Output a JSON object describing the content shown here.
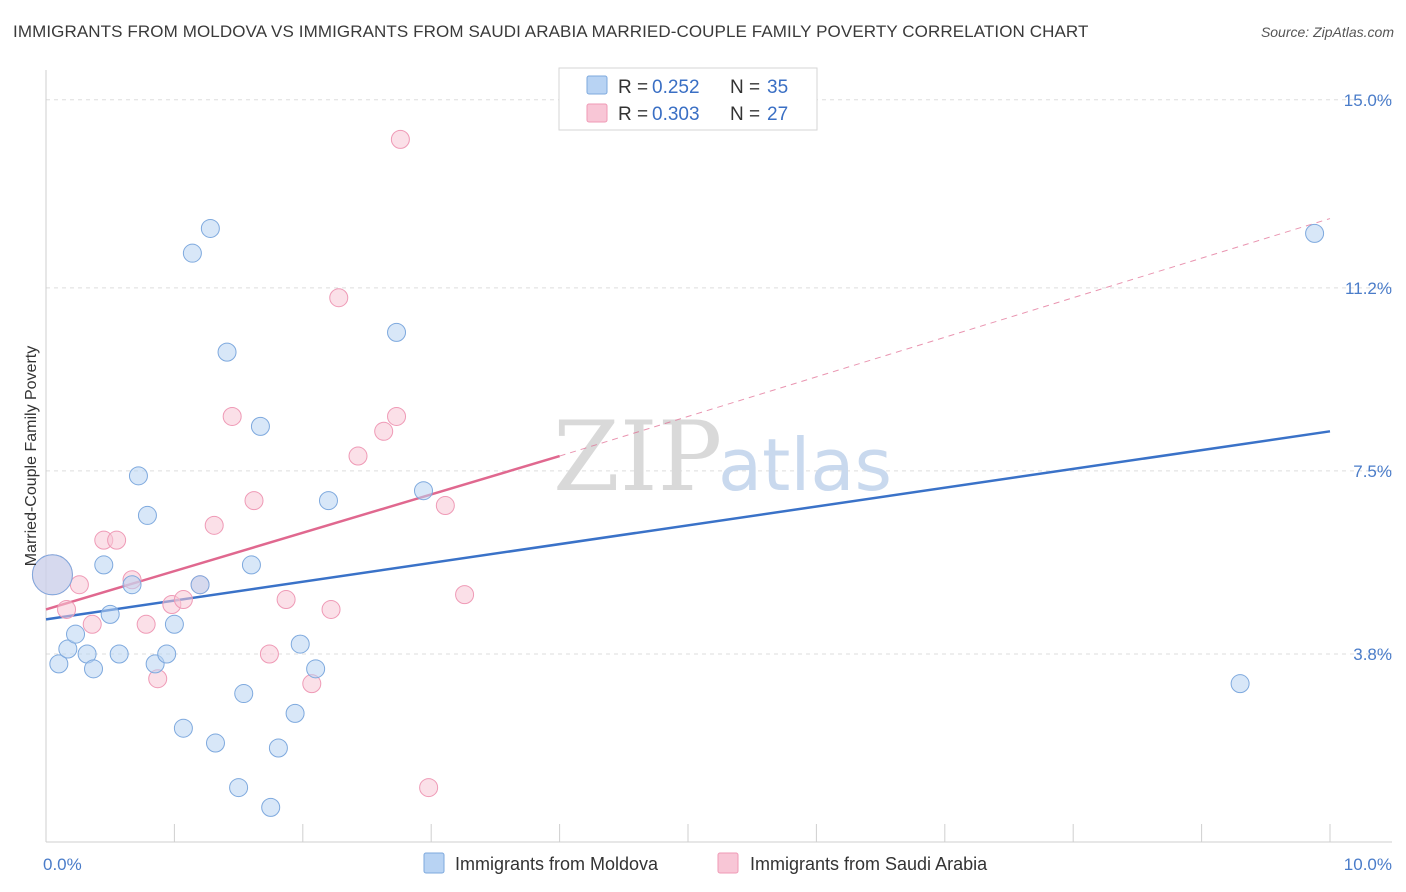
{
  "header": {
    "title": "IMMIGRANTS FROM MOLDOVA VS IMMIGRANTS FROM SAUDI ARABIA MARRIED-COUPLE FAMILY POVERTY CORRELATION CHART",
    "source": "Source: ZipAtlas.com"
  },
  "watermark": {
    "part1": "ZIP",
    "part2": "atlas"
  },
  "colors": {
    "moldova_fill": "#b8d3f3",
    "moldova_stroke": "#7ea9de",
    "moldova_line": "#3a72c8",
    "saudi_fill": "#f8c6d6",
    "saudi_stroke": "#ef9ab6",
    "saudi_line": "#e0688f",
    "grid": "#dddddd",
    "tick_text": "#4a7cc9"
  },
  "legend": {
    "rows": [
      {
        "r_label": "R = ",
        "r_value": "0.252",
        "n_label": "N = ",
        "n_value": "35"
      },
      {
        "r_label": "R = ",
        "r_value": "0.303",
        "n_label": "N = ",
        "n_value": "27"
      }
    ]
  },
  "chart_data": {
    "type": "scatter",
    "title": "IMMIGRANTS FROM MOLDOVA VS IMMIGRANTS FROM SAUDI ARABIA MARRIED-COUPLE FAMILY POVERTY CORRELATION CHART",
    "xlabel": "",
    "ylabel": "Married-Couple Family Poverty",
    "xlim": [
      0,
      10
    ],
    "ylim": [
      0,
      15.4
    ],
    "x_tick_labels": [
      {
        "value": 0,
        "label": "0.0%"
      },
      {
        "value": 10,
        "label": "10.0%"
      }
    ],
    "y_ticks": [
      {
        "value": 3.8,
        "label": "3.8%"
      },
      {
        "value": 7.5,
        "label": "7.5%"
      },
      {
        "value": 11.2,
        "label": "11.2%"
      },
      {
        "value": 15.0,
        "label": "15.0%"
      }
    ],
    "grid": true,
    "legend_position": "top-center",
    "series": [
      {
        "name": "Immigrants from Moldova",
        "r": 0.252,
        "n": 35,
        "trend": {
          "x": [
            0,
            10
          ],
          "y": [
            4.5,
            8.3
          ]
        },
        "points": [
          {
            "x": 0.05,
            "y": 5.4
          },
          {
            "x": 0.1,
            "y": 3.6
          },
          {
            "x": 0.17,
            "y": 3.9
          },
          {
            "x": 0.23,
            "y": 4.2
          },
          {
            "x": 0.32,
            "y": 3.8
          },
          {
            "x": 0.37,
            "y": 3.5
          },
          {
            "x": 0.5,
            "y": 4.6
          },
          {
            "x": 0.45,
            "y": 5.6
          },
          {
            "x": 0.57,
            "y": 3.8
          },
          {
            "x": 0.67,
            "y": 5.2
          },
          {
            "x": 0.72,
            "y": 7.4
          },
          {
            "x": 0.79,
            "y": 6.6
          },
          {
            "x": 0.85,
            "y": 3.6
          },
          {
            "x": 0.94,
            "y": 3.8
          },
          {
            "x": 1.0,
            "y": 4.4
          },
          {
            "x": 1.07,
            "y": 2.3
          },
          {
            "x": 1.14,
            "y": 11.9
          },
          {
            "x": 1.2,
            "y": 5.2
          },
          {
            "x": 1.28,
            "y": 12.4
          },
          {
            "x": 1.32,
            "y": 2.0
          },
          {
            "x": 1.41,
            "y": 9.9
          },
          {
            "x": 1.5,
            "y": 1.1
          },
          {
            "x": 1.54,
            "y": 3.0
          },
          {
            "x": 1.6,
            "y": 5.6
          },
          {
            "x": 1.67,
            "y": 8.4
          },
          {
            "x": 1.75,
            "y": 0.7
          },
          {
            "x": 1.81,
            "y": 1.9
          },
          {
            "x": 1.94,
            "y": 2.6
          },
          {
            "x": 1.98,
            "y": 4.0
          },
          {
            "x": 2.1,
            "y": 3.5
          },
          {
            "x": 2.2,
            "y": 6.9
          },
          {
            "x": 2.73,
            "y": 10.3
          },
          {
            "x": 2.94,
            "y": 7.1
          },
          {
            "x": 9.3,
            "y": 3.2
          },
          {
            "x": 9.88,
            "y": 12.3
          }
        ]
      },
      {
        "name": "Immigrants from Saudi Arabia",
        "r": 0.303,
        "n": 27,
        "trend": {
          "x": [
            0,
            4.0
          ],
          "y": [
            4.7,
            7.8
          ]
        },
        "trend_extension": {
          "x": [
            4.0,
            10
          ],
          "y": [
            7.8,
            12.6
          ]
        },
        "points": [
          {
            "x": 0.05,
            "y": 5.4
          },
          {
            "x": 0.16,
            "y": 4.7
          },
          {
            "x": 0.26,
            "y": 5.2
          },
          {
            "x": 0.36,
            "y": 4.4
          },
          {
            "x": 0.45,
            "y": 6.1
          },
          {
            "x": 0.55,
            "y": 6.1
          },
          {
            "x": 0.67,
            "y": 5.3
          },
          {
            "x": 0.78,
            "y": 4.4
          },
          {
            "x": 0.87,
            "y": 3.3
          },
          {
            "x": 0.98,
            "y": 4.8
          },
          {
            "x": 1.07,
            "y": 4.9
          },
          {
            "x": 1.2,
            "y": 5.2
          },
          {
            "x": 1.31,
            "y": 6.4
          },
          {
            "x": 1.45,
            "y": 8.6
          },
          {
            "x": 1.62,
            "y": 6.9
          },
          {
            "x": 1.74,
            "y": 3.8
          },
          {
            "x": 1.87,
            "y": 4.9
          },
          {
            "x": 2.07,
            "y": 3.2
          },
          {
            "x": 2.22,
            "y": 4.7
          },
          {
            "x": 2.28,
            "y": 11.0
          },
          {
            "x": 2.43,
            "y": 7.8
          },
          {
            "x": 2.63,
            "y": 8.3
          },
          {
            "x": 2.73,
            "y": 8.6
          },
          {
            "x": 2.76,
            "y": 14.2
          },
          {
            "x": 2.98,
            "y": 1.1
          },
          {
            "x": 3.11,
            "y": 6.8
          },
          {
            "x": 3.26,
            "y": 5.0
          }
        ]
      }
    ]
  }
}
